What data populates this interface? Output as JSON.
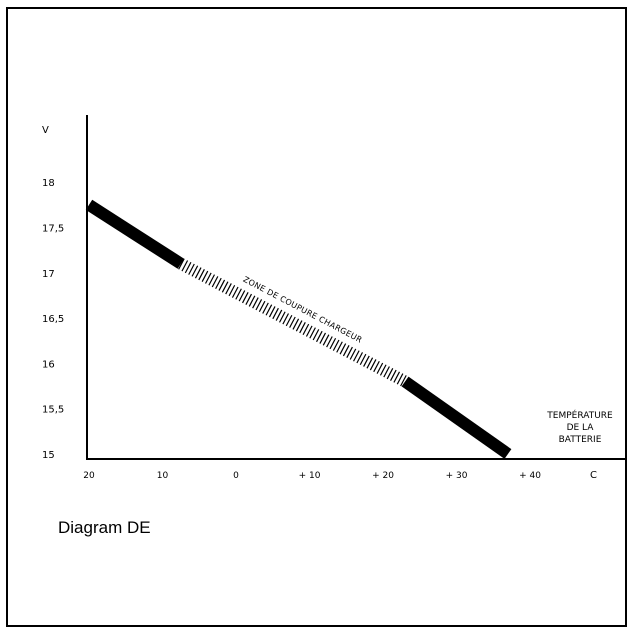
{
  "caption": "Diagram DE",
  "colors": {
    "line": "#000000",
    "background": "#ffffff"
  },
  "chart_data": {
    "type": "line",
    "ylabel": "V",
    "xlabel": "C",
    "y_ticks": [
      "15",
      "15,5",
      "16",
      "16,5",
      "17",
      "17,5",
      "18"
    ],
    "y_tick_values": [
      15,
      15.5,
      16,
      16.5,
      17,
      17.5,
      18
    ],
    "x_ticks": [
      "20",
      "10",
      "0",
      "+ 10",
      "+ 20",
      "+ 30",
      "+ 40"
    ],
    "x_tick_values": [
      -20,
      -10,
      0,
      10,
      20,
      30,
      40
    ],
    "ylim": [
      15,
      18.5
    ],
    "xlim": [
      -20,
      50
    ],
    "grid": false,
    "series": [
      {
        "name": "ZONE DE COUPURE CHARGEUR",
        "x": [
          -20,
          -7.5,
          23,
          37
        ],
        "y": [
          17.75,
          17.1,
          15.8,
          15
        ],
        "segment_styles": [
          "solid-thick",
          "hatched",
          "solid-thick"
        ]
      }
    ],
    "annotations": [
      {
        "lines": [
          "TEMPÉRATURE",
          "DE LA",
          "BATTERIE"
        ]
      }
    ]
  }
}
